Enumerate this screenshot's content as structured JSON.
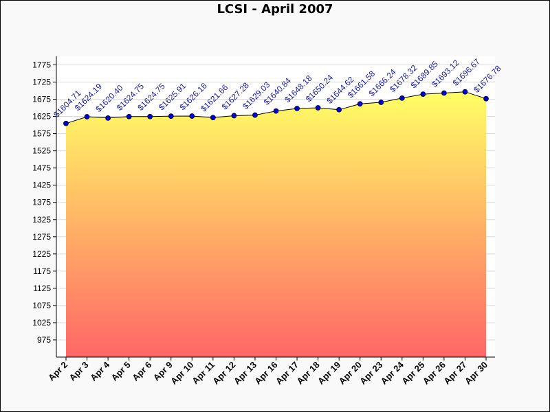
{
  "chart_data": {
    "type": "area",
    "title": "LCSI - April 2007",
    "xlabel": "",
    "ylabel": "",
    "categories": [
      "Apr 2",
      "Apr 3",
      "Apr 4",
      "Apr 5",
      "Apr 6",
      "Apr 9",
      "Apr 10",
      "Apr 11",
      "Apr 12",
      "Apr 13",
      "Apr 16",
      "Apr 17",
      "Apr 18",
      "Apr 19",
      "Apr 20",
      "Apr 23",
      "Apr 24",
      "Apr 25",
      "Apr 26",
      "Apr 27",
      "Apr 30"
    ],
    "values": [
      1604.71,
      1624.19,
      1620.4,
      1624.75,
      1624.75,
      1625.91,
      1626.16,
      1621.66,
      1627.28,
      1629.03,
      1640.84,
      1648.18,
      1650.24,
      1644.62,
      1661.58,
      1666.24,
      1678.32,
      1689.85,
      1693.12,
      1696.67,
      1676.78
    ],
    "value_labels": [
      "$1604.71",
      "$1624.19",
      "$1620.40",
      "$1624.75",
      "$1624.75",
      "$1625.91",
      "$1626.16",
      "$1621.66",
      "$1627.28",
      "$1629.03",
      "$1640.84",
      "$1648.18",
      "$1650.24",
      "$1644.62",
      "$1661.58",
      "$1666.24",
      "$1678.32",
      "$1689.85",
      "$1693.12",
      "$1696.67",
      "$1676.78"
    ],
    "yticks": [
      975,
      1025,
      1075,
      1125,
      1175,
      1225,
      1275,
      1325,
      1375,
      1425,
      1475,
      1525,
      1575,
      1625,
      1675,
      1725,
      1775
    ],
    "ylim": [
      925,
      1800
    ],
    "grid": true,
    "legend": "none",
    "colors": {
      "fill_top": "#ffff66",
      "fill_bottom": "#ff6666",
      "line": "#000000",
      "marker": "#0000cc",
      "label": "#1a1aa0",
      "plot_bg": "#ffffff",
      "grid": "#d8d8d8"
    }
  }
}
